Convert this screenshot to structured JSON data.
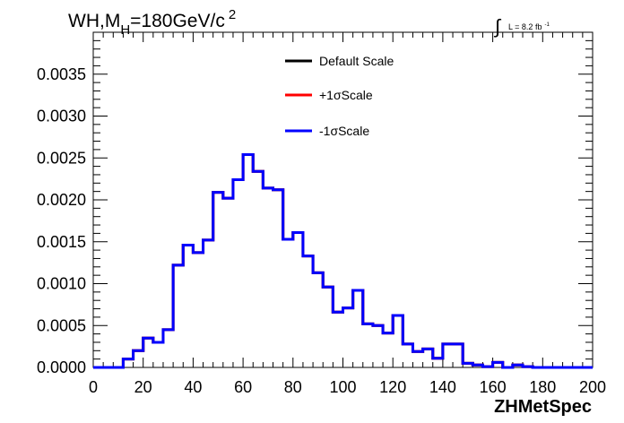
{
  "chart_data": {
    "type": "line",
    "title_main": "WH,M",
    "title_sub": "H",
    "title_rest": "=180GeV/c",
    "title_sup": "2",
    "lumi_label": "L = 8.2 fb",
    "lumi_sup": "-1",
    "xlabel": "ZHMetSpec",
    "ylabel": "",
    "xlim": [
      0,
      200
    ],
    "ylim": [
      0,
      0.004
    ],
    "x_ticks": [
      "0",
      "20",
      "40",
      "60",
      "80",
      "100",
      "120",
      "140",
      "160",
      "180",
      "200"
    ],
    "y_ticks": [
      "0.0000",
      "0.0005",
      "0.0010",
      "0.0015",
      "0.0020",
      "0.0025",
      "0.0030",
      "0.0035"
    ],
    "legend": [
      {
        "label": "Default Scale",
        "color": "#000000"
      },
      {
        "label": "+1σScale",
        "color": "#ff0000"
      },
      {
        "label": "-1σScale",
        "color": "#0000ff"
      }
    ],
    "bin_edges": [
      0,
      4,
      8,
      12,
      16,
      20,
      24,
      28,
      32,
      36,
      40,
      44,
      48,
      52,
      56,
      60,
      64,
      68,
      72,
      76,
      80,
      84,
      88,
      92,
      96,
      100,
      104,
      108,
      112,
      116,
      120,
      124,
      128,
      132,
      136,
      140,
      144,
      148,
      152,
      156,
      160,
      164,
      168,
      172,
      176,
      180,
      184,
      188,
      192,
      196,
      200
    ],
    "series": [
      {
        "name": "Default Scale",
        "color": "#000000",
        "values": [
          0,
          0,
          0,
          0.0001,
          0.0002,
          0.00035,
          0.0003,
          0.00045,
          0.00122,
          0.00146,
          0.00137,
          0.00152,
          0.00209,
          0.00202,
          0.00224,
          0.00254,
          0.00234,
          0.00214,
          0.00212,
          0.00153,
          0.00161,
          0.00133,
          0.00113,
          0.00096,
          0.00066,
          0.00071,
          0.00092,
          0.00052,
          0.0005,
          0.00041,
          0.00062,
          0.00028,
          0.00019,
          0.00022,
          0.00011,
          0.00028,
          0.00028,
          5e-05,
          3e-05,
          1e-05,
          6e-05,
          0,
          3e-05,
          1e-05,
          0,
          0,
          0,
          0,
          0,
          0
        ]
      },
      {
        "name": "+1σScale",
        "color": "#ff0000",
        "values": [
          0,
          0,
          0,
          0.0001,
          0.0002,
          0.00035,
          0.0003,
          0.00045,
          0.00122,
          0.00146,
          0.00137,
          0.00152,
          0.00209,
          0.00202,
          0.00224,
          0.00254,
          0.00234,
          0.00214,
          0.00212,
          0.00153,
          0.00161,
          0.00133,
          0.00113,
          0.00096,
          0.00066,
          0.00071,
          0.00092,
          0.00052,
          0.0005,
          0.00041,
          0.00062,
          0.00028,
          0.00019,
          0.00022,
          0.00011,
          0.00028,
          0.00028,
          5e-05,
          3e-05,
          1e-05,
          6e-05,
          0,
          3e-05,
          1e-05,
          0,
          0,
          0,
          0,
          0,
          0
        ]
      },
      {
        "name": "-1σScale",
        "color": "#0000ff",
        "values": [
          0,
          0,
          0,
          0.0001,
          0.0002,
          0.00035,
          0.0003,
          0.00045,
          0.00122,
          0.00146,
          0.00137,
          0.00152,
          0.00209,
          0.00202,
          0.00224,
          0.00254,
          0.00234,
          0.00214,
          0.00212,
          0.00153,
          0.00161,
          0.00133,
          0.00113,
          0.00096,
          0.00066,
          0.00071,
          0.00092,
          0.00052,
          0.0005,
          0.00041,
          0.00062,
          0.00028,
          0.00019,
          0.00022,
          0.00011,
          0.00028,
          0.00028,
          5e-05,
          3e-05,
          1e-05,
          6e-05,
          0,
          3e-05,
          1e-05,
          0,
          0,
          0,
          0,
          0,
          0
        ]
      }
    ]
  }
}
